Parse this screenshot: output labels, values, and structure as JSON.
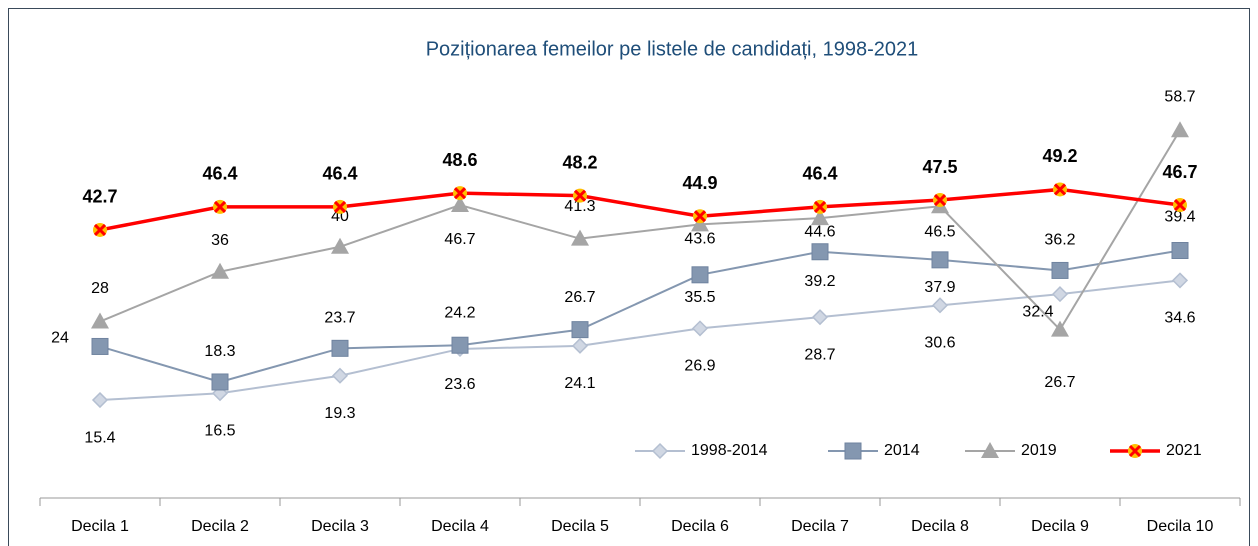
{
  "chart_data": {
    "type": "line",
    "title": "Poziționarea femeilor pe listele de candidați, 1998-2021",
    "categories": [
      "Decila 1",
      "Decila 2",
      "Decila 3",
      "Decila 4",
      "Decila 5",
      "Decila 6",
      "Decila 7",
      "Decila 8",
      "Decila 9",
      "Decila 10"
    ],
    "series": [
      {
        "name": "1998-2014",
        "color": "#b4bfd1",
        "values": [
          15.4,
          16.5,
          19.3,
          23.6,
          24.1,
          26.9,
          28.7,
          30.6,
          32.4,
          34.6
        ]
      },
      {
        "name": "2014",
        "color": "#8497b0",
        "values": [
          24,
          18.3,
          23.7,
          24.2,
          26.7,
          35.5,
          39.2,
          37.9,
          36.2,
          39.4
        ]
      },
      {
        "name": "2019",
        "color": "#a5a5a5",
        "values": [
          28,
          36,
          40,
          46.7,
          41.3,
          43.6,
          44.6,
          46.5,
          26.7,
          58.7
        ]
      },
      {
        "name": "2021",
        "color": "#ff0000",
        "values": [
          42.7,
          46.4,
          46.4,
          48.6,
          48.2,
          44.9,
          46.4,
          47.5,
          49.2,
          46.7
        ]
      }
    ],
    "ylim": [
      0,
      65
    ],
    "legend": "bottom-right"
  }
}
